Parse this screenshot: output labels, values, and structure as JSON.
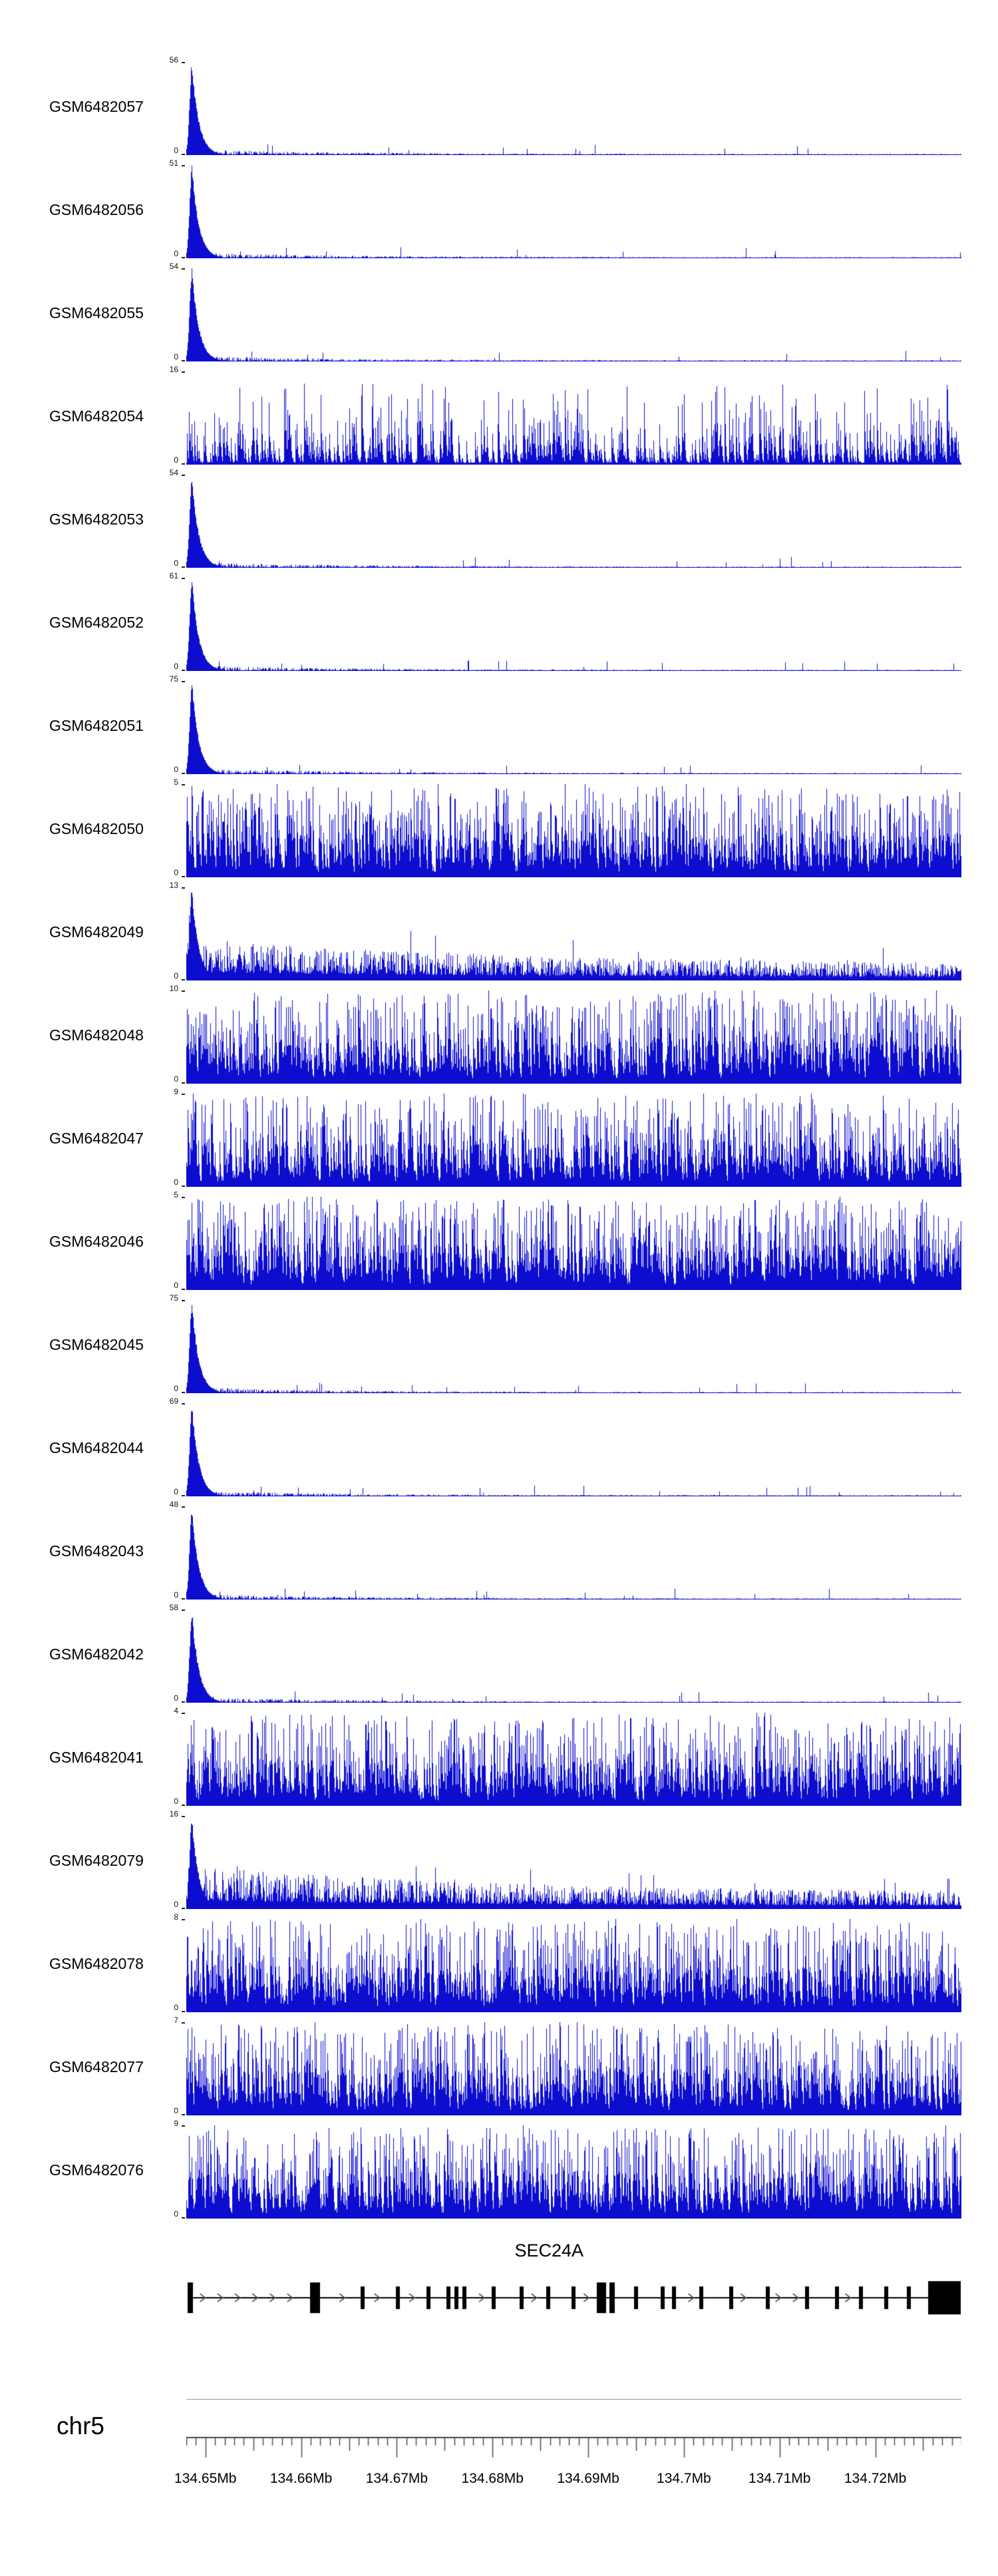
{
  "page": {
    "background": "#ffffff",
    "signal_color": "#0d0dd0"
  },
  "chart_data": {
    "type": "area",
    "description": "Stacked genome-browser coverage tracks (blue signal) over the SEC24A locus with gene model and chromosome ruler",
    "region": {
      "chromosome": "chr5",
      "start_mb": 134.648,
      "end_mb": 134.729
    },
    "tracks": [
      {
        "name": "GSM6482057",
        "ymin": 0,
        "ymax": 56,
        "profile": "peak"
      },
      {
        "name": "GSM6482056",
        "ymin": 0,
        "ymax": 51,
        "profile": "peak"
      },
      {
        "name": "GSM6482055",
        "ymin": 0,
        "ymax": 54,
        "profile": "peak"
      },
      {
        "name": "GSM6482054",
        "ymin": 0,
        "ymax": 16,
        "profile": "spiky"
      },
      {
        "name": "GSM6482053",
        "ymin": 0,
        "ymax": 54,
        "profile": "peak"
      },
      {
        "name": "GSM6482052",
        "ymin": 0,
        "ymax": 61,
        "profile": "peak"
      },
      {
        "name": "GSM6482051",
        "ymin": 0,
        "ymax": 75,
        "profile": "peak"
      },
      {
        "name": "GSM6482050",
        "ymin": 0,
        "ymax": 5,
        "profile": "dense"
      },
      {
        "name": "GSM6482049",
        "ymin": 0,
        "ymax": 13,
        "profile": "peaknoise"
      },
      {
        "name": "GSM6482048",
        "ymin": 0,
        "ymax": 10,
        "profile": "dense"
      },
      {
        "name": "GSM6482047",
        "ymin": 0,
        "ymax": 9,
        "profile": "dense"
      },
      {
        "name": "GSM6482046",
        "ymin": 0,
        "ymax": 5,
        "profile": "dense"
      },
      {
        "name": "GSM6482045",
        "ymin": 0,
        "ymax": 75,
        "profile": "peak"
      },
      {
        "name": "GSM6482044",
        "ymin": 0,
        "ymax": 69,
        "profile": "peak"
      },
      {
        "name": "GSM6482043",
        "ymin": 0,
        "ymax": 48,
        "profile": "peak"
      },
      {
        "name": "GSM6482042",
        "ymin": 0,
        "ymax": 58,
        "profile": "peak"
      },
      {
        "name": "GSM6482041",
        "ymin": 0,
        "ymax": 4,
        "profile": "dense"
      },
      {
        "name": "GSM6482079",
        "ymin": 0,
        "ymax": 16,
        "profile": "peaknoise"
      },
      {
        "name": "GSM6482078",
        "ymin": 0,
        "ymax": 8,
        "profile": "dense"
      },
      {
        "name": "GSM6482077",
        "ymin": 0,
        "ymax": 7,
        "profile": "dense"
      },
      {
        "name": "GSM6482076",
        "ymin": 0,
        "ymax": 9,
        "profile": "dense"
      }
    ],
    "gene": {
      "name": "SEC24A",
      "strand": "right",
      "label_x_frac": 0.468,
      "exons": [
        [
          0.002,
          0.007,
          "tall"
        ],
        [
          0.16,
          0.013,
          "tall"
        ],
        [
          0.225,
          0.005,
          "normal"
        ],
        [
          0.27,
          0.005,
          "normal"
        ],
        [
          0.31,
          0.005,
          "normal"
        ],
        [
          0.336,
          0.005,
          "normal"
        ],
        [
          0.346,
          0.005,
          "normal"
        ],
        [
          0.356,
          0.005,
          "normal"
        ],
        [
          0.394,
          0.005,
          "normal"
        ],
        [
          0.43,
          0.005,
          "normal"
        ],
        [
          0.464,
          0.005,
          "normal"
        ],
        [
          0.497,
          0.005,
          "normal"
        ],
        [
          0.53,
          0.012,
          "tall"
        ],
        [
          0.546,
          0.007,
          "tall"
        ],
        [
          0.578,
          0.005,
          "normal"
        ],
        [
          0.612,
          0.005,
          "normal"
        ],
        [
          0.627,
          0.005,
          "normal"
        ],
        [
          0.662,
          0.005,
          "normal"
        ],
        [
          0.7,
          0.005,
          "normal"
        ],
        [
          0.748,
          0.005,
          "normal"
        ],
        [
          0.798,
          0.005,
          "normal"
        ],
        [
          0.837,
          0.005,
          "normal"
        ],
        [
          0.868,
          0.005,
          "normal"
        ],
        [
          0.9,
          0.005,
          "normal"
        ],
        [
          0.93,
          0.005,
          "normal"
        ],
        [
          0.957,
          0.042,
          "end"
        ]
      ]
    },
    "ruler": {
      "chromosome": "chr5",
      "tick_labels": [
        "134.65Mb",
        "134.66Mb",
        "134.67Mb",
        "134.68Mb",
        "134.69Mb",
        "134.7Mb",
        "134.71Mb",
        "134.72Mb"
      ],
      "tick_positions_mb": [
        134.65,
        134.66,
        134.67,
        134.68,
        134.69,
        134.7,
        134.71,
        134.72
      ],
      "minor_tick_mb": 0.001
    }
  }
}
